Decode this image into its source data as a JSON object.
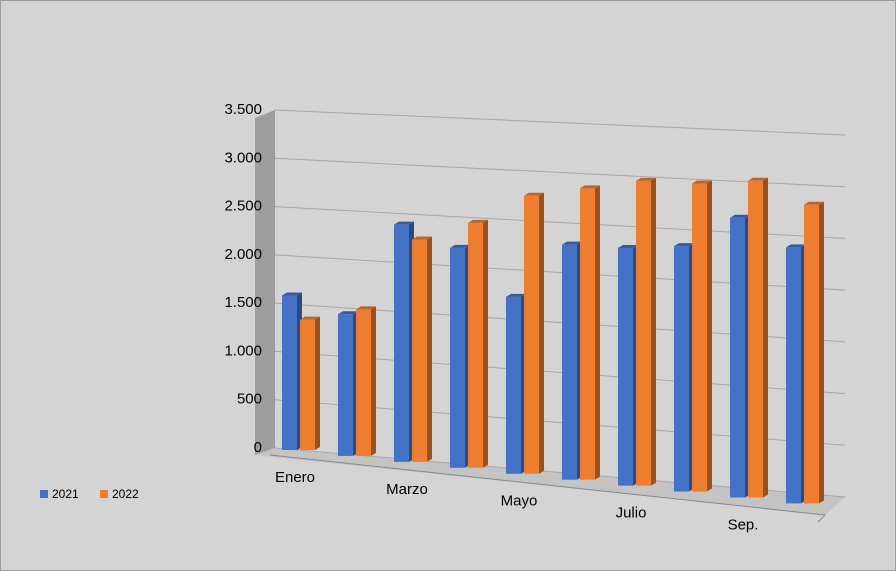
{
  "chart_data": {
    "type": "bar3d",
    "categories": [
      "Enero",
      null,
      "Marzo",
      null,
      "Mayo",
      null,
      "Julio",
      null,
      "Sep.",
      null
    ],
    "series": [
      {
        "name": "2021",
        "color": "#4472c4",
        "values": [
          1600,
          1450,
          2400,
          2200,
          1750,
          2300,
          2300,
          2350,
          2650,
          2400
        ]
      },
      {
        "name": "2022",
        "color": "#ed7d31",
        "values": [
          1350,
          1500,
          2250,
          2450,
          2750,
          2850,
          2950,
          2950,
          3000,
          2800
        ]
      }
    ],
    "ylim": [
      0,
      3500
    ],
    "yticks": [
      {
        "value": 0,
        "label": "0"
      },
      {
        "value": 500,
        "label": "500"
      },
      {
        "value": 1000,
        "label": "1.000"
      },
      {
        "value": 1500,
        "label": "1.500"
      },
      {
        "value": 2000,
        "label": "2.000"
      },
      {
        "value": 2500,
        "label": "2.500"
      },
      {
        "value": 3000,
        "label": "3.000"
      },
      {
        "value": 3500,
        "label": "3.500"
      }
    ],
    "grid": true,
    "legend": "bottom-left"
  }
}
